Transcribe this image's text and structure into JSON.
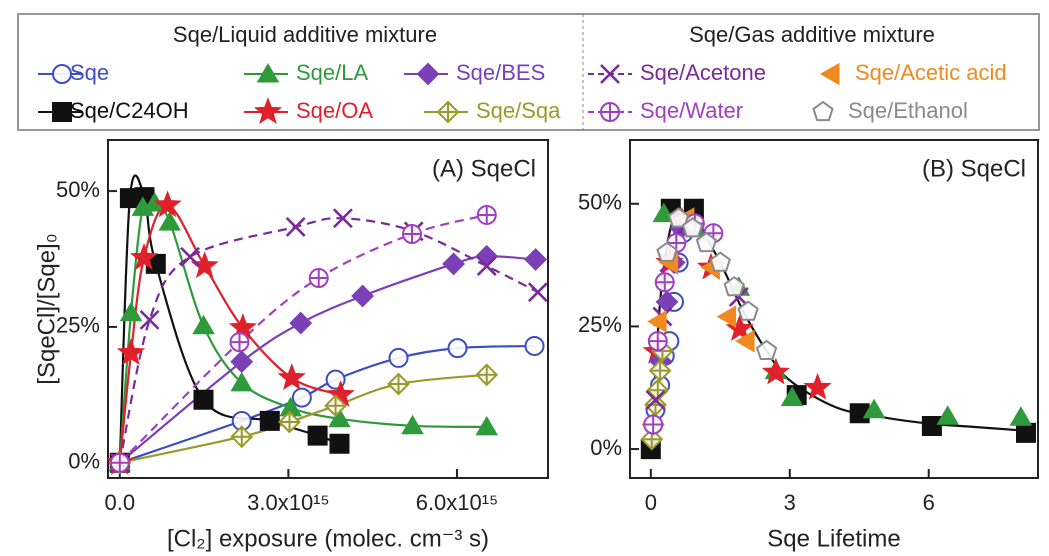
{
  "legend_headers": [
    "Sqe/Liquid additive mixture",
    "Sqe/Gas additive mixture"
  ],
  "chart_data": [
    {
      "type": "line",
      "annotation": "(A) SqeCl",
      "xlabel": "[Cl₂] exposure (molec. cm⁻³ s)",
      "ylabel": "[SqeCl]/[Sqe]₀",
      "xlim": [
        -210000000000000.0,
        7620000000000000.0
      ],
      "ylim": [
        -2.8,
        59.4
      ],
      "xticks": [
        {
          "value": 0,
          "label": "0.0"
        },
        {
          "value": 3000000000000000.0,
          "label": "3.0x10¹⁵"
        },
        {
          "value": 6000000000000000.0,
          "label": "6.0x10¹⁵"
        }
      ],
      "yticks": [
        {
          "value": 0,
          "label": "0%"
        },
        {
          "value": 25,
          "label": "25%"
        },
        {
          "value": 50,
          "label": "50%"
        }
      ],
      "series": [
        {
          "name": "Sqe",
          "color": "#3a4fc4",
          "marker": "circle",
          "filled": false,
          "linestyle": "solid",
          "x": [
            0,
            2170000000000000.0,
            3240000000000000.0,
            3840000000000000.0,
            4960000000000000.0,
            6010000000000000.0,
            7380000000000000.0
          ],
          "values": [
            0,
            7.7,
            12,
            15.3,
            19.3,
            21.1,
            21.5
          ]
        },
        {
          "name": "Sqe/C24OH",
          "color": "#111111",
          "marker": "square",
          "filled": true,
          "linestyle": "solid",
          "x": [
            0,
            180000000000000.0,
            440000000000000.0,
            640000000000000.0,
            1490000000000000.0,
            2670000000000000.0,
            3520000000000000.0,
            3910000000000000.0
          ],
          "values": [
            0,
            48.7,
            48.9,
            36.6,
            11.6,
            7.7,
            5,
            3.5
          ]
        },
        {
          "name": "Sqe/LA",
          "color": "#2e9a3a",
          "marker": "triangle",
          "filled": true,
          "linestyle": "solid",
          "x": [
            0,
            200000000000000.0,
            410000000000000.0,
            620000000000000.0,
            890000000000000.0,
            1490000000000000.0,
            2170000000000000.0,
            3040000000000000.0,
            3910000000000000.0,
            5210000000000000.0,
            6530000000000000.0
          ],
          "values": [
            0,
            27.6,
            47,
            47.8,
            44.3,
            25.2,
            14.7,
            10.1,
            8.1,
            6.8,
            6.6
          ]
        },
        {
          "name": "Sqe/OA",
          "color": "#e0202a",
          "marker": "star",
          "filled": true,
          "linestyle": "solid",
          "x": [
            0,
            200000000000000.0,
            430000000000000.0,
            850000000000000.0,
            1510000000000000.0,
            2190000000000000.0,
            3060000000000000.0,
            3930000000000000.0
          ],
          "values": [
            0,
            20.2,
            37.7,
            47.4,
            36.2,
            24.8,
            15.6,
            12.5
          ]
        },
        {
          "name": "Sqe/BES",
          "color": "#7b3fb8",
          "marker": "diamond",
          "filled": true,
          "linestyle": "solid",
          "x": [
            0,
            2170000000000000.0,
            3220000000000000.0,
            4320000000000000.0,
            5940000000000000.0,
            6530000000000000.0,
            7400000000000000.0
          ],
          "values": [
            0,
            18.6,
            25.7,
            30.7,
            36.6,
            38,
            37.4
          ]
        },
        {
          "name": "Sqe/Sqa",
          "color": "#9a9a2a",
          "marker": "crossdiamond",
          "filled": false,
          "linestyle": "solid",
          "x": [
            0,
            2170000000000000.0,
            3020000000000000.0,
            3840000000000000.0,
            4960000000000000.0,
            6530000000000000.0
          ],
          "values": [
            0,
            4.8,
            7.5,
            10.5,
            14.5,
            16.2
          ]
        },
        {
          "name": "Sqe/Acetone",
          "color": "#7a2a9a",
          "marker": "x",
          "filled": false,
          "linestyle": "dashed",
          "x": [
            0,
            530000000000000.0,
            1250000000000000.0,
            3130000000000000.0,
            3970000000000000.0,
            5230000000000000.0,
            6530000000000000.0,
            7440000000000000.0
          ],
          "values": [
            0,
            26.3,
            37.9,
            43.4,
            45,
            42.6,
            36.2,
            31.4
          ]
        },
        {
          "name": "Sqe/Water",
          "color": "#a040c0",
          "marker": "crosscircle",
          "filled": false,
          "linestyle": "dashed",
          "x": [
            0,
            2130000000000000.0,
            3540000000000000.0,
            5200000000000000.0,
            6530000000000000.0
          ],
          "values": [
            0,
            22.2,
            34,
            42.1,
            45.6
          ]
        }
      ]
    },
    {
      "type": "scatter",
      "annotation": "(B) SqeCl",
      "xlabel": "Sqe Lifetime",
      "xlim": [
        -0.45,
        8.36
      ],
      "ylim": [
        -5.9,
        63
      ],
      "xticks": [
        0,
        3,
        6
      ],
      "yticks": [
        {
          "value": 0,
          "label": "0%"
        },
        {
          "value": 25,
          "label": "25%"
        },
        {
          "value": 50,
          "label": "50%"
        }
      ],
      "fit": {
        "color": "#111111",
        "x": [
          0,
          0.2,
          0.4,
          0.6,
          0.8,
          1.0,
          1.5,
          2,
          2.5,
          3,
          4,
          5,
          6,
          7,
          8
        ],
        "values": [
          0,
          30,
          44,
          48,
          48,
          46,
          38,
          28,
          20,
          14,
          8.5,
          6.5,
          5.2,
          4.5,
          3.8
        ]
      },
      "series": [
        {
          "name": "Sqe",
          "color": "#3a4fc4",
          "marker": "circle",
          "filled": false,
          "x": [
            0.1,
            0.2,
            0.3,
            0.4,
            0.5,
            0.6,
            0.7
          ],
          "values": [
            8,
            13,
            19,
            22,
            30,
            38,
            44
          ]
        },
        {
          "name": "Sqe/C24OH",
          "color": "#111111",
          "marker": "square",
          "filled": true,
          "x": [
            0,
            0.43,
            0.93,
            3.15,
            4.51,
            6.07,
            8.1
          ],
          "values": [
            0,
            49,
            49,
            11,
            7.3,
            4.7,
            3.3
          ]
        },
        {
          "name": "Sqe/LA",
          "color": "#2e9a3a",
          "marker": "triangle",
          "filled": true,
          "x": [
            0.28,
            0.69,
            1.0,
            1.9,
            2.7,
            3.05,
            4.82,
            6.41,
            7.99
          ],
          "values": [
            48,
            46.7,
            45,
            33,
            16,
            10.5,
            8,
            6.7,
            6.5
          ]
        },
        {
          "name": "Sqe/OA",
          "color": "#e0202a",
          "marker": "star",
          "filled": true,
          "x": [
            0.13,
            0.4,
            0.67,
            1.3,
            1.92,
            2.7,
            3.6
          ],
          "values": [
            19.8,
            38,
            46.3,
            37,
            24.5,
            15.6,
            12.5
          ]
        },
        {
          "name": "Sqe/BES",
          "color": "#7b3fb8",
          "marker": "diamond",
          "filled": true,
          "x": [
            0.05,
            0.2,
            0.35,
            0.5,
            0.65
          ],
          "values": [
            5,
            18,
            30,
            38,
            45
          ]
        },
        {
          "name": "Sqe/Sqa",
          "color": "#9a9a2a",
          "marker": "crossdiamond",
          "filled": false,
          "x": [
            0.02,
            0.05,
            0.1,
            0.15,
            0.2,
            0.25
          ],
          "values": [
            2,
            5,
            9,
            12,
            16,
            20
          ]
        },
        {
          "name": "Sqe/Acetone",
          "color": "#7a2a9a",
          "marker": "x",
          "filled": false,
          "linestyle": "dashed",
          "x": [
            0.1,
            0.25,
            0.4,
            0.7,
            1.2,
            1.9
          ],
          "values": [
            10,
            27,
            38,
            45,
            44,
            31
          ]
        },
        {
          "name": "Sqe/Acetic acid",
          "color": "#f08a20",
          "marker": "triangle-left",
          "filled": true,
          "x": [
            0.2,
            0.45,
            0.8,
            1.35,
            1.7,
            2.1
          ],
          "values": [
            26,
            38,
            47,
            37,
            27,
            22
          ]
        },
        {
          "name": "Sqe/Water",
          "color": "#a040c0",
          "marker": "crosscircle",
          "filled": false,
          "linestyle": "dashed",
          "x": [
            0.05,
            0.15,
            0.3,
            0.55,
            0.95,
            1.35
          ],
          "values": [
            5,
            22,
            34,
            42,
            46,
            44
          ]
        },
        {
          "name": "Sqe/Ethanol",
          "color": "#8a8a8a",
          "marker": "pentagon",
          "filled": false,
          "x": [
            0.35,
            0.6,
            0.9,
            1.2,
            1.5,
            1.8,
            2.1,
            2.5
          ],
          "values": [
            40,
            47,
            45,
            42,
            38,
            33,
            28,
            20
          ]
        }
      ]
    }
  ]
}
